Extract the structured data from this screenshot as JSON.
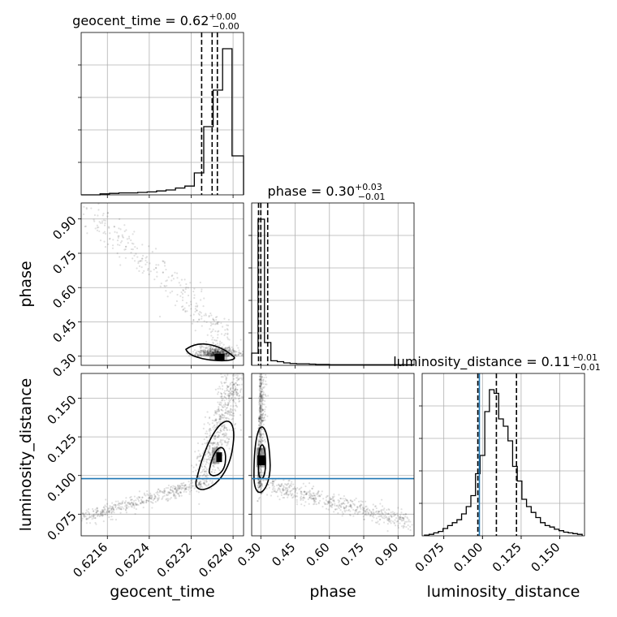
{
  "chart_data": {
    "type": "corner",
    "parameters": [
      "geocent_time",
      "phase",
      "luminosity_distance"
    ],
    "axis_labels": {
      "geocent_time": "geocent_time",
      "phase": "phase",
      "luminosity_distance": "luminosity_distance"
    },
    "titles": [
      {
        "param": "geocent_time",
        "text": "geocent_time = 0.62",
        "sup": "+0.00",
        "sub": "−0.00"
      },
      {
        "param": "phase",
        "text": "phase = 0.30",
        "sup": "+0.03",
        "sub": "−0.01"
      },
      {
        "param": "luminosity_distance",
        "text": "luminosity_distance = 0.11",
        "sup": "+0.01",
        "sub": "−0.01"
      }
    ],
    "ranges": {
      "geocent_time": [
        0.6211,
        0.6242
      ],
      "phase": [
        0.26,
        0.97
      ],
      "luminosity_distance": [
        0.061,
        0.166
      ]
    },
    "ticks": {
      "geocent_time": {
        "values": [
          0.6216,
          0.6224,
          0.6232,
          0.624
        ],
        "labels": [
          "0.6216",
          "0.6224",
          "0.6232",
          "0.6240"
        ]
      },
      "phase": {
        "values": [
          0.3,
          0.45,
          0.6,
          0.75,
          0.9
        ],
        "labels": [
          "0.30",
          "0.45",
          "0.60",
          "0.75",
          "0.90"
        ]
      },
      "luminosity_distance": {
        "values": [
          0.075,
          0.1,
          0.125,
          0.15
        ],
        "labels": [
          "0.075",
          "0.100",
          "0.125",
          "0.150"
        ]
      }
    },
    "quantiles": {
      "geocent_time": [
        0.6234,
        0.6236,
        0.6237
      ],
      "phase": [
        0.29,
        0.3,
        0.33
      ],
      "luminosity_distance": [
        0.097,
        0.109,
        0.122
      ]
    },
    "truth": {
      "luminosity_distance": 0.098
    },
    "truth_color": "#1f77b4",
    "histograms": {
      "geocent_time": {
        "edges": [
          0.6211,
          0.62128,
          0.62146,
          0.62164,
          0.62182,
          0.622,
          0.62218,
          0.62236,
          0.62254,
          0.62272,
          0.6229,
          0.62308,
          0.62326,
          0.62344,
          0.62362,
          0.6238,
          0.62398,
          0.6242
        ],
        "counts": [
          0,
          0,
          2,
          3,
          4,
          4,
          5,
          6,
          8,
          10,
          14,
          18,
          45,
          140,
          215,
          300,
          80
        ]
      },
      "phase": {
        "edges": [
          0.26,
          0.288,
          0.316,
          0.344,
          0.372,
          0.4,
          0.428,
          0.456,
          0.484,
          0.512,
          0.54,
          0.6,
          0.7,
          0.8,
          0.9,
          0.97
        ],
        "counts": [
          40,
          480,
          75,
          15,
          12,
          8,
          6,
          5,
          5,
          4,
          3,
          2,
          2,
          2,
          2
        ]
      },
      "luminosity_distance": {
        "edges": [
          0.0625,
          0.0655,
          0.0685,
          0.0715,
          0.0745,
          0.0775,
          0.0805,
          0.0835,
          0.0865,
          0.0895,
          0.0925,
          0.0955,
          0.0985,
          0.1015,
          0.1045,
          0.1075,
          0.1105,
          0.1135,
          0.1165,
          0.1195,
          0.1225,
          0.1255,
          0.1285,
          0.1315,
          0.1345,
          0.1375,
          0.1405,
          0.1435,
          0.1465,
          0.1495,
          0.1525,
          0.1555,
          0.1585,
          0.1615,
          0.1645
        ],
        "counts": [
          1,
          2,
          4,
          6,
          10,
          14,
          18,
          22,
          30,
          40,
          55,
          85,
          110,
          170,
          200,
          195,
          160,
          150,
          130,
          95,
          75,
          50,
          40,
          32,
          25,
          18,
          14,
          12,
          9,
          7,
          5,
          4,
          3,
          2
        ]
      }
    },
    "scatter_axis_labels_shown": true,
    "grid": true
  }
}
